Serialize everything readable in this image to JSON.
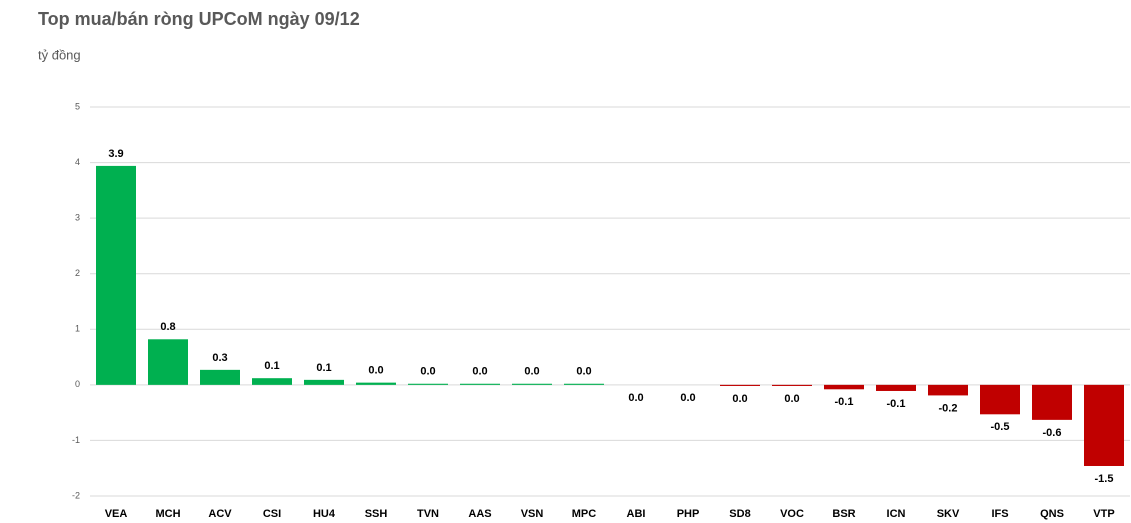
{
  "chart_data": {
    "type": "bar",
    "title": "Top mua/bán ròng UPCoM ngày 09/12",
    "subtitle": "tỷ đồng",
    "categories": [
      "VEA",
      "MCH",
      "ACV",
      "CSI",
      "HU4",
      "SSH",
      "TVN",
      "AAS",
      "VSN",
      "MPC",
      "ABI",
      "PHP",
      "SD8",
      "VOC",
      "BSR",
      "ICN",
      "SKV",
      "IFS",
      "QNS",
      "VTP"
    ],
    "values": [
      3.94,
      0.82,
      0.27,
      0.12,
      0.09,
      0.04,
      0.02,
      0.02,
      0.02,
      0.02,
      0,
      0,
      -0.02,
      -0.02,
      -0.08,
      -0.11,
      -0.19,
      -0.53,
      -0.63,
      -1.46
    ],
    "value_labels": [
      "3.9",
      "0.8",
      "0.3",
      "0.1",
      "0.1",
      "0.0",
      "0.0",
      "0.0",
      "0.0",
      "0.0",
      "0.0",
      "0.0",
      "0.0",
      "0.0",
      "-0.1",
      "-0.1",
      "-0.2",
      "-0.5",
      "-0.6",
      "-1.5"
    ],
    "color_positive": "#00b050",
    "color_negative": "#c00000",
    "ylim": [
      -2,
      5
    ],
    "yticks": [
      -2,
      -1,
      0,
      1,
      2,
      3,
      4,
      5
    ],
    "grid": true
  }
}
